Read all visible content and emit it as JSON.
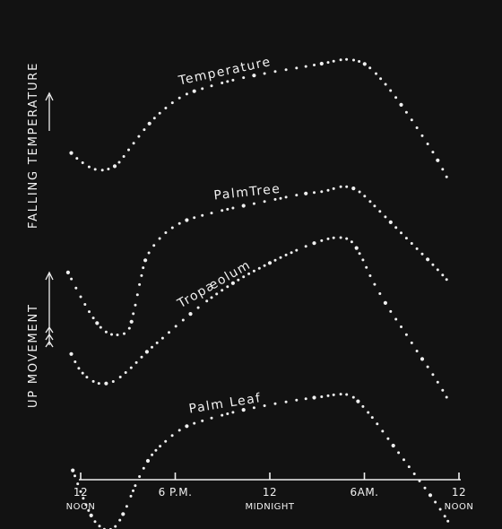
{
  "chart_data": {
    "type": "scatter",
    "title": "",
    "x_tick_labels": [
      {
        "x": 0,
        "label": "12",
        "sublabel": "NOON"
      },
      {
        "x": 6,
        "label": "6 P.M.",
        "sublabel": ""
      },
      {
        "x": 12,
        "label": "12",
        "sublabel": "MIDNIGHT"
      },
      {
        "x": 18,
        "label": "6AM.",
        "sublabel": ""
      },
      {
        "x": 24,
        "label": "12",
        "sublabel": "NOON"
      }
    ],
    "xlim": [
      0,
      24
    ],
    "y_labels": {
      "top": "FALLING TEMPERATURE",
      "bottom": "UP MOVEMENT"
    },
    "grid": false,
    "series": [
      {
        "name": "Temperature",
        "x": [
          -0.6,
          0,
          0.8,
          1.5,
          2.3,
          3.2,
          4.2,
          5.2,
          6.5,
          8,
          10,
          12,
          14,
          15.5,
          16.5,
          17.2,
          17.9,
          18.6,
          19.5,
          20.5,
          21.5,
          22.5,
          23.3
        ],
        "y": [
          0.42,
          0.5,
          0.57,
          0.58,
          0.53,
          0.36,
          0.17,
          0.02,
          -0.12,
          -0.2,
          -0.28,
          -0.34,
          -0.39,
          -0.43,
          -0.46,
          -0.46,
          -0.43,
          -0.35,
          -0.2,
          0.0,
          0.22,
          0.45,
          0.67
        ]
      },
      {
        "name": "PalmTree",
        "x": [
          -0.8,
          0,
          0.8,
          1.5,
          2.2,
          3.0,
          3.4,
          3.8,
          4.2,
          5.2,
          6.5,
          8,
          10,
          12,
          14,
          15.5,
          16.5,
          17.2,
          17.8,
          18.5,
          19.5,
          20.5,
          21.5,
          22.5,
          23.3
        ],
        "y": [
          1.55,
          1.78,
          1.98,
          2.1,
          2.14,
          2.1,
          1.9,
          1.62,
          1.4,
          1.2,
          1.07,
          1.0,
          0.93,
          0.87,
          0.81,
          0.78,
          0.74,
          0.75,
          0.8,
          0.9,
          1.05,
          1.2,
          1.35,
          1.5,
          1.63
        ]
      },
      {
        "name": "Tropæolum",
        "x": [
          -0.6,
          0,
          0.8,
          1.5,
          2.2,
          3.2,
          4.2,
          5.2,
          6.5,
          8,
          10,
          12,
          14,
          15.5,
          16.5,
          17.2,
          17.8,
          18.5,
          19.5,
          20.5,
          21.5,
          22.5,
          23.3
        ],
        "y": [
          2.32,
          2.48,
          2.58,
          2.6,
          2.57,
          2.45,
          2.3,
          2.17,
          2.0,
          1.82,
          1.62,
          1.46,
          1.32,
          1.24,
          1.22,
          1.26,
          1.4,
          1.62,
          1.88,
          2.1,
          2.33,
          2.55,
          2.75
        ]
      },
      {
        "name": "Palm Leaf",
        "x": [
          -0.5,
          0,
          0.5,
          1.0,
          1.6,
          2.2,
          2.8,
          3.6,
          4.4,
          5.2,
          6.5,
          8,
          10,
          12,
          14,
          15.5,
          16.5,
          17.2,
          17.8,
          18.5,
          19.5,
          20.5,
          21.5,
          22.5,
          23.3
        ],
        "y": [
          3.42,
          3.62,
          3.8,
          3.92,
          3.98,
          3.95,
          3.8,
          3.52,
          3.3,
          3.17,
          3.02,
          2.94,
          2.86,
          2.8,
          2.75,
          2.72,
          2.7,
          2.72,
          2.8,
          2.92,
          3.12,
          3.32,
          3.52,
          3.72,
          3.9
        ]
      }
    ]
  }
}
